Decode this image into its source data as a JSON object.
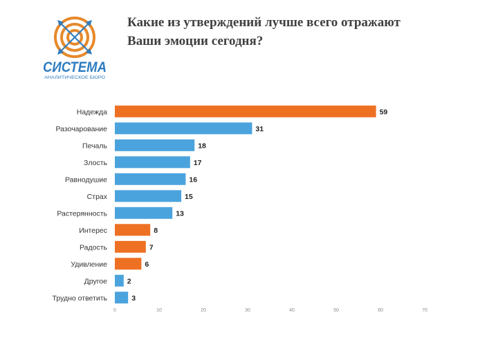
{
  "logo": {
    "name": "СИСТЕМА",
    "subtitle": "АНАЛИТИЧЕСКОЕ   БЮРО",
    "colors": {
      "orange": "#E8892B",
      "blue": "#2F7CBF"
    }
  },
  "title": {
    "line1": "Какие из утверждений лучше всего отражают",
    "line2": "Ваши эмоции сегодня?"
  },
  "chart_data": {
    "type": "bar",
    "orientation": "horizontal",
    "categories": [
      "Надежда",
      "Разочарование",
      "Печаль",
      "Злость",
      "Равнодушие",
      "Страх",
      "Растерянность",
      "Интерес",
      "Радость",
      "Удивление",
      "Другое",
      "Трудно ответить"
    ],
    "values": [
      59,
      31,
      18,
      17,
      16,
      15,
      13,
      8,
      7,
      6,
      2,
      3
    ],
    "bar_colors": [
      "#EE7023",
      "#4BA3DD",
      "#4BA3DD",
      "#4BA3DD",
      "#4BA3DD",
      "#4BA3DD",
      "#4BA3DD",
      "#EE7023",
      "#EE7023",
      "#EE7023",
      "#4BA3DD",
      "#4BA3DD"
    ],
    "xlim": [
      0,
      70
    ],
    "xticks": [
      0,
      10,
      20,
      30,
      40,
      50,
      60,
      70
    ],
    "data_labels": true,
    "grid": false
  }
}
